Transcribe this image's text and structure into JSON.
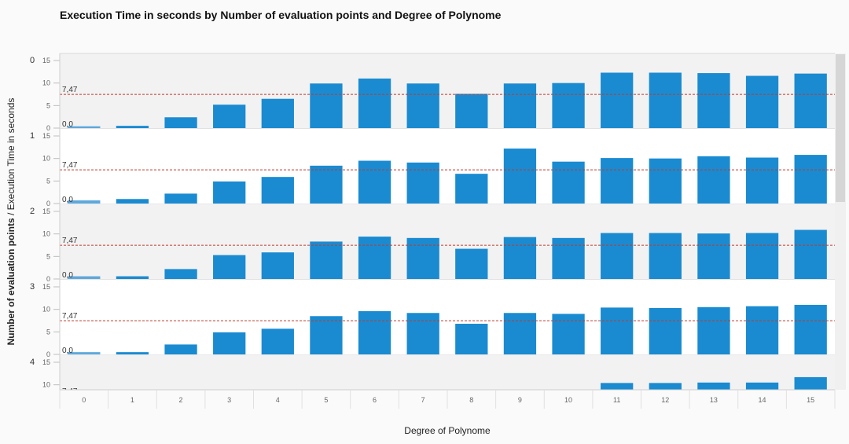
{
  "chart_data": {
    "type": "bar",
    "title": "Execution Time in seconds by Number of evaluation points and Degree of Polynome",
    "xlabel": "Degree of Polynome",
    "ylabel_prefix": "Number of evaluation points",
    "ylabel_separator": " / ",
    "ylabel_suffix": "Execution Time in seconds",
    "categories": [
      "0",
      "1",
      "2",
      "3",
      "4",
      "5",
      "6",
      "7",
      "8",
      "9",
      "10",
      "11",
      "12",
      "13",
      "14",
      "15"
    ],
    "ylim": [
      0,
      15
    ],
    "yticks": [
      "0",
      "5",
      "10",
      "15"
    ],
    "reference_lines": {
      "average_label": "7,47",
      "average": 7.47,
      "zero_label": "0,0",
      "zero": 0
    },
    "colors": {
      "bar": "#1a8bd1",
      "first_bar": "#5ea8dc",
      "reference_line": "#c0392b",
      "band_shade": "#f2f2f2"
    },
    "facets": [
      {
        "label": "0",
        "values": [
          0.4,
          0.5,
          2.4,
          5.2,
          6.5,
          9.9,
          11.0,
          9.9,
          7.6,
          9.9,
          10.0,
          12.3,
          12.3,
          12.2,
          11.6,
          12.1
        ]
      },
      {
        "label": "1",
        "values": [
          0.7,
          1.0,
          2.2,
          4.9,
          5.9,
          8.4,
          9.5,
          9.1,
          6.6,
          12.2,
          9.3,
          10.1,
          10.0,
          10.5,
          10.2,
          10.8
        ]
      },
      {
        "label": "2",
        "values": [
          0.6,
          0.6,
          2.2,
          5.3,
          5.9,
          8.3,
          9.4,
          9.1,
          6.7,
          9.3,
          9.1,
          10.2,
          10.2,
          10.1,
          10.2,
          10.9
        ]
      },
      {
        "label": "3",
        "values": [
          0.5,
          0.5,
          2.2,
          4.9,
          5.7,
          8.5,
          9.6,
          9.2,
          6.8,
          9.2,
          9.0,
          10.4,
          10.3,
          10.5,
          10.7,
          11.0
        ]
      },
      {
        "label": "4",
        "values": [
          null,
          null,
          null,
          null,
          null,
          null,
          null,
          null,
          null,
          null,
          null,
          10.4,
          10.4,
          10.5,
          10.5,
          11.7
        ]
      }
    ]
  }
}
